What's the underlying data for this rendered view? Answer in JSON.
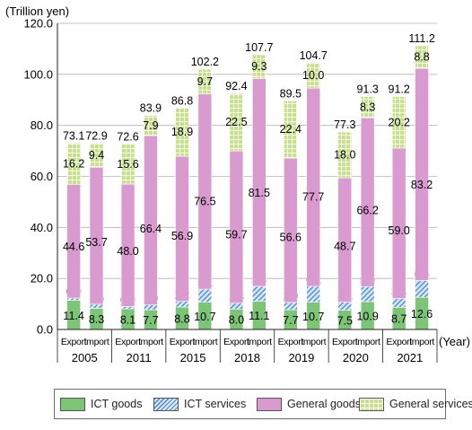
{
  "chart_data": {
    "type": "bar",
    "stacked": true,
    "ylabel": "(Trillion yen)",
    "xlabel": "(Year)",
    "ylim": [
      0,
      120
    ],
    "yticks": [
      "0.0",
      "20.0",
      "40.0",
      "60.0",
      "80.0",
      "100.0",
      "120.0"
    ],
    "bar_types": [
      "Export",
      "Import"
    ],
    "years": [
      "2005",
      "2011",
      "2015",
      "2018",
      "2019",
      "2020",
      "2021"
    ],
    "series_names": [
      "ICT goods",
      "ICT services",
      "General goods",
      "General services"
    ],
    "colors": {
      "ict_goods": "#7cc576",
      "ict_services": "#4a86c8",
      "general_goods": "#d99ad0",
      "general_services": "#c9e08b"
    },
    "bars": [
      {
        "year": "2005",
        "type": "Export",
        "ict_goods": 11.4,
        "ict_services": 0.9,
        "general_goods": 44.6,
        "general_services": 16.2,
        "total": "73.1"
      },
      {
        "year": "2005",
        "type": "Import",
        "ict_goods": 8.3,
        "ict_services": 1.6,
        "general_goods": 53.7,
        "general_services": 9.4,
        "total": "72.9"
      },
      {
        "year": "2011",
        "type": "Export",
        "ict_goods": 8.1,
        "ict_services": 0.9,
        "general_goods": 48.0,
        "general_services": 15.6,
        "total": "72.6"
      },
      {
        "year": "2011",
        "type": "Import",
        "ict_goods": 7.7,
        "ict_services": 1.9,
        "general_goods": 66.4,
        "general_services": 7.9,
        "total": "83.9"
      },
      {
        "year": "2015",
        "type": "Export",
        "ict_goods": 8.8,
        "ict_services": 2.2,
        "general_goods": 56.9,
        "general_services": 18.9,
        "total": "86.8"
      },
      {
        "year": "2015",
        "type": "Import",
        "ict_goods": 10.7,
        "ict_services": 5.1,
        "general_goods": 76.5,
        "general_services": 9.7,
        "total": "102.2"
      },
      {
        "year": "2018",
        "type": "Export",
        "ict_goods": 8.0,
        "ict_services": 2.3,
        "general_goods": 59.7,
        "general_services": 22.5,
        "total": "92.4"
      },
      {
        "year": "2018",
        "type": "Import",
        "ict_goods": 11.1,
        "ict_services": 5.8,
        "general_goods": 81.5,
        "general_services": 9.3,
        "total": "107.7"
      },
      {
        "year": "2019",
        "type": "Export",
        "ict_goods": 7.7,
        "ict_services": 2.9,
        "general_goods": 56.6,
        "general_services": 22.4,
        "total": "89.5"
      },
      {
        "year": "2019",
        "type": "Import",
        "ict_goods": 10.7,
        "ict_services": 6.2,
        "general_goods": 77.7,
        "general_services": 10.0,
        "total": "104.7"
      },
      {
        "year": "2020",
        "type": "Export",
        "ict_goods": 7.5,
        "ict_services": 3.2,
        "general_goods": 48.7,
        "general_services": 18.0,
        "total": "77.3"
      },
      {
        "year": "2020",
        "type": "Import",
        "ict_goods": 10.9,
        "ict_services": 5.9,
        "general_goods": 66.2,
        "general_services": 8.3,
        "total": "91.3"
      },
      {
        "year": "2021",
        "type": "Export",
        "ict_goods": 8.7,
        "ict_services": 3.4,
        "general_goods": 59.0,
        "general_services": 20.2,
        "total": "91.2"
      },
      {
        "year": "2021",
        "type": "Import",
        "ict_goods": 12.6,
        "ict_services": 6.6,
        "general_goods": 83.2,
        "general_services": 8.8,
        "total": "111.2"
      }
    ]
  }
}
